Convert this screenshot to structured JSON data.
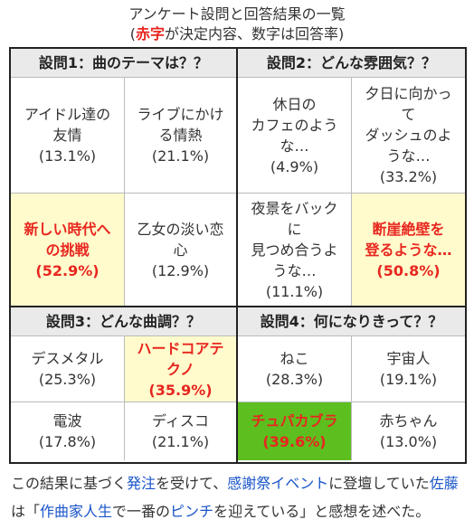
{
  "title": "アンケート設問と回答結果の一覧",
  "subtitle": {
    "open": "(",
    "red": "赤字",
    "rest": "が決定内容、数字は回答率)"
  },
  "q1": {
    "header": "設問1：曲のテーマは？？",
    "cells": [
      {
        "text": "アイドル達の\n友情\n(13.1%)"
      },
      {
        "text": "ライブにかけ\nる情熱\n(21.1%)"
      },
      {
        "text": "新しい時代へ\nの挑戦\n(52.9%)"
      },
      {
        "text": "乙女の淡い恋\n心\n(12.9%)"
      }
    ]
  },
  "q2": {
    "header": "設問2：どんな雰囲気？？",
    "cells": [
      {
        "text": "休日の\nカフェのよう\nな…\n(4.9%)"
      },
      {
        "text": "夕日に向かっ\nて\nダッシュのよ\nうな…\n(33.2%)"
      },
      {
        "text": "夜景をバック\nに\n見つめ合うよ\nうな…\n(11.1%)"
      },
      {
        "text": "断崖絶壁を\n登るような…\n(50.8%)"
      }
    ]
  },
  "q3": {
    "header": "設問3：どんな曲調？？",
    "cells": [
      {
        "text": "デスメタル\n(25.3%)"
      },
      {
        "text": "ハードコアテ\nクノ\n(35.9%)"
      },
      {
        "text": "電波\n(17.8%)"
      },
      {
        "text": "ディスコ\n(21.1%)"
      }
    ]
  },
  "q4": {
    "header": "設問4：何になりきって？？",
    "cells": [
      {
        "text": "ねこ\n(28.3%)"
      },
      {
        "text": "宇宙人\n(19.1%)"
      },
      {
        "text": "チュパカブラ\n(39.6%)"
      },
      {
        "text": "赤ちゃん\n(13.0%)"
      }
    ]
  },
  "footer": {
    "t1": "この結果に基づく",
    "l1": "発注",
    "t2": "を受けて、",
    "l2": "感謝祭イベント",
    "t3": "に登壇していた",
    "l3": "佐藤",
    "t4": "は「",
    "l4": "作曲家人生",
    "t5": "で一番の",
    "l5": "ピンチ",
    "t6": "を迎えている」と感想を述べた。"
  },
  "colors": {
    "highlight_red": "#e8261f",
    "highlight_bg": "#fffbcc",
    "green_bg": "#5cbf1f",
    "link": "#1a55c9"
  }
}
